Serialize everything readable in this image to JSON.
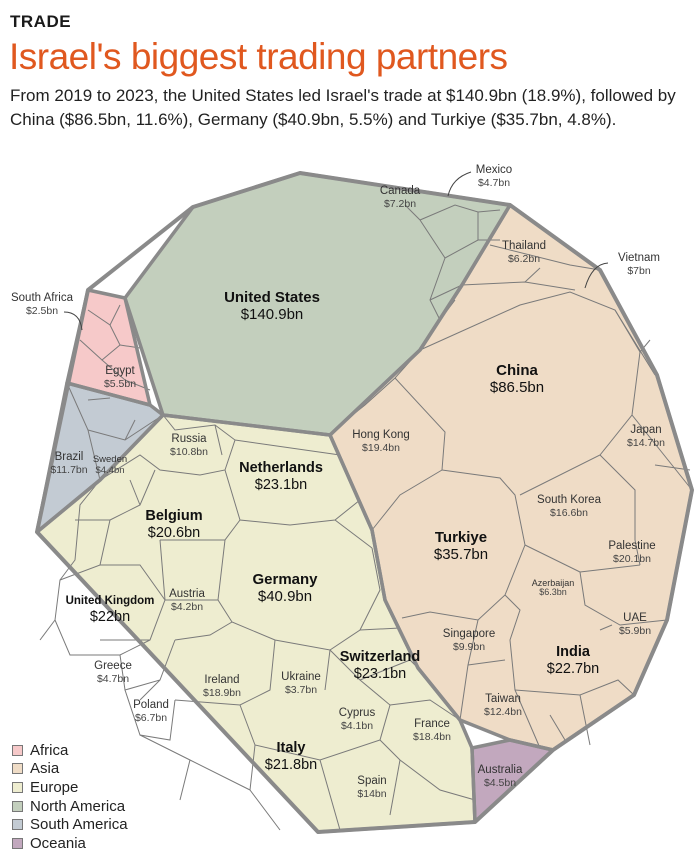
{
  "header": {
    "section": "TRADE",
    "title": "Israel's biggest trading partners",
    "subtitle": "From 2019 to 2023, the United States led Israel's trade at $140.9bn (18.9%), followed by China ($86.5bn, 11.6%), Germany ($40.9bn, 5.5%) and Turkiye ($35.7bn, 4.8%)."
  },
  "colors": {
    "Africa": "#f6c9c9",
    "Asia": "#efdcc6",
    "Europe": "#eeedd0",
    "North America": "#c3cfbd",
    "South America": "#c3cbd3",
    "Oceania": "#c2a8be",
    "border": "#7a7a7a",
    "outline": "#8a8a8a"
  },
  "legend": [
    {
      "label": "Africa",
      "color": "#f6c9c9"
    },
    {
      "label": "Asia",
      "color": "#efdcc6"
    },
    {
      "label": "Europe",
      "color": "#eeedd0"
    },
    {
      "label": "North America",
      "color": "#c3cfbd"
    },
    {
      "label": "South America",
      "color": "#c3cbd3"
    },
    {
      "label": "Oceania",
      "color": "#c2a8be"
    }
  ],
  "chart_data": {
    "type": "voronoi-treemap",
    "unit": "$bn",
    "partners": [
      {
        "name": "United States",
        "region": "North America",
        "value": 140.9,
        "display": "$140.9bn"
      },
      {
        "name": "Canada",
        "region": "North America",
        "value": 7.2,
        "display": "$7.2bn"
      },
      {
        "name": "Mexico",
        "region": "North America",
        "value": 4.7,
        "display": "$4.7bn"
      },
      {
        "name": "China",
        "region": "Asia",
        "value": 86.5,
        "display": "$86.5bn"
      },
      {
        "name": "Turkiye",
        "region": "Asia",
        "value": 35.7,
        "display": "$35.7bn"
      },
      {
        "name": "India",
        "region": "Asia",
        "value": 22.7,
        "display": "$22.7bn"
      },
      {
        "name": "Palestine",
        "region": "Asia",
        "value": 20.1,
        "display": "$20.1bn"
      },
      {
        "name": "Hong Kong",
        "region": "Asia",
        "value": 19.4,
        "display": "$19.4bn"
      },
      {
        "name": "South Korea",
        "region": "Asia",
        "value": 16.6,
        "display": "$16.6bn"
      },
      {
        "name": "Japan",
        "region": "Asia",
        "value": 14.7,
        "display": "$14.7bn"
      },
      {
        "name": "Taiwan",
        "region": "Asia",
        "value": 12.4,
        "display": "$12.4bn"
      },
      {
        "name": "Singapore",
        "region": "Asia",
        "value": 9.9,
        "display": "$9.9bn"
      },
      {
        "name": "Vietnam",
        "region": "Asia",
        "value": 7.0,
        "display": "$7bn"
      },
      {
        "name": "Azerbaijan",
        "region": "Asia",
        "value": 6.3,
        "display": "$6.3bn"
      },
      {
        "name": "Thailand",
        "region": "Asia",
        "value": 6.2,
        "display": "$6.2bn"
      },
      {
        "name": "UAE",
        "region": "Asia",
        "value": 5.9,
        "display": "$5.9bn"
      },
      {
        "name": "Germany",
        "region": "Europe",
        "value": 40.9,
        "display": "$40.9bn"
      },
      {
        "name": "Netherlands",
        "region": "Europe",
        "value": 23.1,
        "display": "$23.1bn"
      },
      {
        "name": "Switzerland",
        "region": "Europe",
        "value": 23.1,
        "display": "$23.1bn"
      },
      {
        "name": "United Kingdom",
        "region": "Europe",
        "value": 22.0,
        "display": "$22bn"
      },
      {
        "name": "Italy",
        "region": "Europe",
        "value": 21.8,
        "display": "$21.8bn"
      },
      {
        "name": "Belgium",
        "region": "Europe",
        "value": 20.6,
        "display": "$20.6bn"
      },
      {
        "name": "Ireland",
        "region": "Europe",
        "value": 18.9,
        "display": "$18.9bn"
      },
      {
        "name": "France",
        "region": "Europe",
        "value": 18.4,
        "display": "$18.4bn"
      },
      {
        "name": "Spain",
        "region": "Europe",
        "value": 14.0,
        "display": "$14bn"
      },
      {
        "name": "Russia",
        "region": "Europe",
        "value": 10.8,
        "display": "$10.8bn"
      },
      {
        "name": "Poland",
        "region": "Europe",
        "value": 6.7,
        "display": "$6.7bn"
      },
      {
        "name": "Greece",
        "region": "Europe",
        "value": 4.7,
        "display": "$4.7bn"
      },
      {
        "name": "Sweden",
        "region": "Europe",
        "value": 4.4,
        "display": "$4.4bn"
      },
      {
        "name": "Austria",
        "region": "Europe",
        "value": 4.2,
        "display": "$4.2bn"
      },
      {
        "name": "Cyprus",
        "region": "Europe",
        "value": 4.1,
        "display": "$4.1bn"
      },
      {
        "name": "Ukraine",
        "region": "Europe",
        "value": 3.7,
        "display": "$3.7bn"
      },
      {
        "name": "Brazil",
        "region": "South America",
        "value": 11.7,
        "display": "$11.7bn"
      },
      {
        "name": "Egypt",
        "region": "Africa",
        "value": 5.5,
        "display": "$5.5bn"
      },
      {
        "name": "South Africa",
        "region": "Africa",
        "value": 2.5,
        "display": "$2.5bn"
      },
      {
        "name": "Australia",
        "region": "Oceania",
        "value": 4.5,
        "display": "$4.5bn"
      }
    ]
  }
}
